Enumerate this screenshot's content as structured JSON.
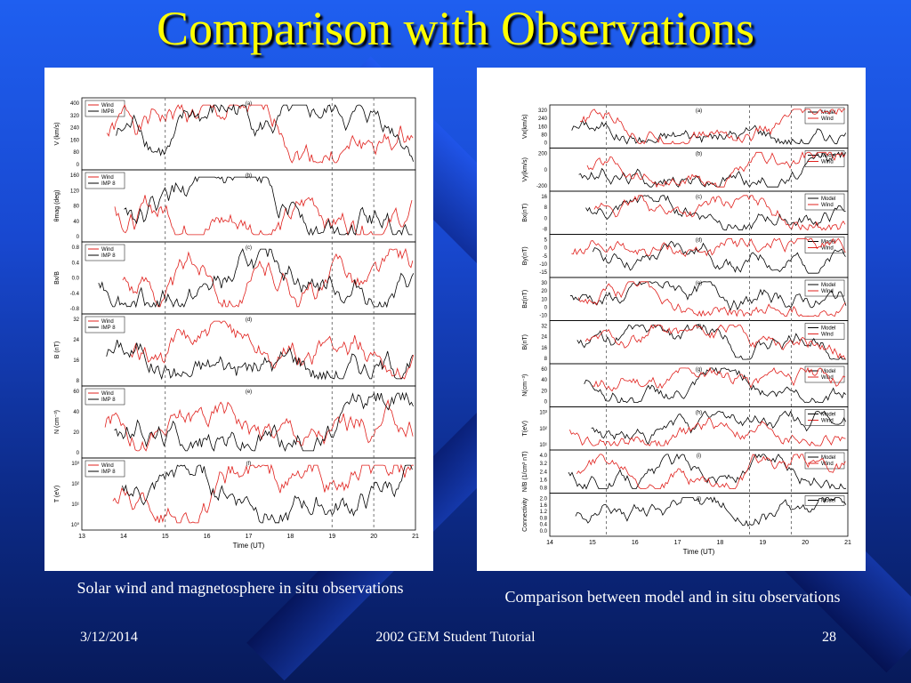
{
  "title": "Comparison with Observations",
  "left_figure": {
    "caption": "Solar wind and magnetosphere in situ observations",
    "panels": [
      {
        "tag": "(a)",
        "ylabel": "V (km/s)",
        "ticks": [
          "400",
          "320",
          "240",
          "160",
          "80",
          "0"
        ],
        "legend": [
          "Wind",
          "IMP8"
        ]
      },
      {
        "tag": "(b)",
        "ylabel": "θmag (deg)",
        "ticks": [
          "160",
          "120",
          "80",
          "40",
          "0"
        ],
        "legend": [
          "Wind",
          "IMP 8"
        ]
      },
      {
        "tag": "(c)",
        "ylabel": "Bx/B",
        "ticks": [
          "0.8",
          "0.4",
          "0.0",
          "-0.4",
          "-0.8"
        ],
        "legend": [
          "Wind",
          "IMP 8"
        ]
      },
      {
        "tag": "(d)",
        "ylabel": "B (nT)",
        "ticks": [
          "32",
          "24",
          "16",
          "8"
        ],
        "legend": [
          "Wind",
          "IMP 8"
        ]
      },
      {
        "tag": "(e)",
        "ylabel": "N (cm⁻³)",
        "ticks": [
          "60",
          "40",
          "20",
          "0"
        ],
        "legend": [
          "Wind",
          "IMP 8"
        ]
      },
      {
        "tag": "(f)",
        "ylabel": "T (eV)",
        "ticks": [
          "10³",
          "10²",
          "10¹",
          "10⁰"
        ],
        "legend": [
          "Wind",
          "IMP 8"
        ]
      }
    ],
    "xticks": [
      "13",
      "14",
      "15",
      "16",
      "17",
      "18",
      "19",
      "20",
      "21"
    ],
    "xlabel": "Time (UT)"
  },
  "right_figure": {
    "caption": "Comparison between model and in situ observations",
    "panels": [
      {
        "tag": "(a)",
        "ylabel": "Vx(km/s)",
        "ticks": [
          "320",
          "240",
          "160",
          "80",
          "0"
        ],
        "legend": [
          "Model",
          "Wind"
        ]
      },
      {
        "tag": "(b)",
        "ylabel": "Vy(km/s)",
        "ticks": [
          "200",
          "0",
          "-200"
        ],
        "legend": [
          "Model",
          "Wind"
        ]
      },
      {
        "tag": "(c)",
        "ylabel": "Bx(nT)",
        "ticks": [
          "16",
          "8",
          "0",
          "-8"
        ],
        "legend": [
          "Model",
          "Wind"
        ]
      },
      {
        "tag": "(d)",
        "ylabel": "By(nT)",
        "ticks": [
          "5",
          "0",
          "-5",
          "-10",
          "-15"
        ],
        "legend": [
          "Model",
          "Wind"
        ]
      },
      {
        "tag": "(e)",
        "ylabel": "Bz(nT)",
        "ticks": [
          "30",
          "20",
          "10",
          "0",
          "-10"
        ],
        "legend": [
          "Model",
          "Wind"
        ]
      },
      {
        "tag": "(f)",
        "ylabel": "B(nT)",
        "ticks": [
          "32",
          "24",
          "16",
          "8"
        ],
        "legend": [
          "Model",
          "Wind"
        ]
      },
      {
        "tag": "(g)",
        "ylabel": "N(cm⁻³)",
        "ticks": [
          "60",
          "40",
          "20",
          "0"
        ],
        "legend": [
          "Model",
          "Wind"
        ]
      },
      {
        "tag": "(h)",
        "ylabel": "T(eV)",
        "ticks": [
          "10³",
          "10²",
          "10¹"
        ],
        "legend": [
          "Model",
          "Wind"
        ]
      },
      {
        "tag": "(i)",
        "ylabel": "N/B (1/cm³ nT)",
        "ticks": [
          "4.0",
          "3.2",
          "2.4",
          "1.6",
          "0.8"
        ],
        "legend": [
          "Model",
          "Wind"
        ]
      },
      {
        "tag": "(j)",
        "ylabel": "Connectivity",
        "ticks": [
          "2.0",
          "1.6",
          "1.2",
          "0.8",
          "0.4",
          "0.0"
        ],
        "legend": [
          "Model"
        ]
      }
    ],
    "xticks": [
      "14",
      "15",
      "16",
      "17",
      "18",
      "19",
      "20",
      "21"
    ],
    "xlabel": "Time (UT)"
  },
  "footer": {
    "date": "3/12/2014",
    "center": "2002 GEM Student Tutorial",
    "page": "28"
  },
  "colors": {
    "background": "#1848d0",
    "title": "#ffff00",
    "trace_red": "#e0201c",
    "trace_black": "#000000"
  }
}
